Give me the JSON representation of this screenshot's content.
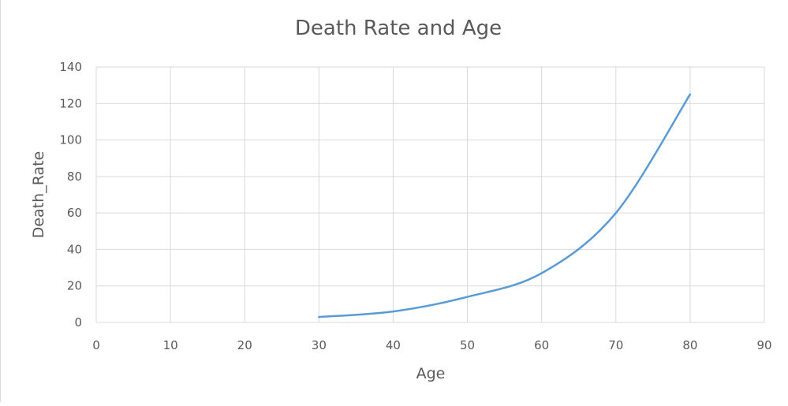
{
  "chart_data": {
    "type": "line",
    "title": "Death Rate and Age",
    "xlabel": "Age",
    "ylabel": "Death_Rate",
    "xlim": [
      0,
      90
    ],
    "ylim": [
      0,
      140
    ],
    "x_ticks": [
      0,
      10,
      20,
      30,
      40,
      50,
      60,
      70,
      80,
      90
    ],
    "y_ticks": [
      0,
      20,
      40,
      60,
      80,
      100,
      120,
      140
    ],
    "grid": true,
    "legend": "none",
    "series": [
      {
        "color": "#5b9bd5",
        "smooth": true,
        "points": [
          {
            "x": 30,
            "y": 3
          },
          {
            "x": 40,
            "y": 6
          },
          {
            "x": 50,
            "y": 14
          },
          {
            "x": 60,
            "y": 27
          },
          {
            "x": 70,
            "y": 60
          },
          {
            "x": 80,
            "y": 125
          }
        ]
      }
    ]
  }
}
